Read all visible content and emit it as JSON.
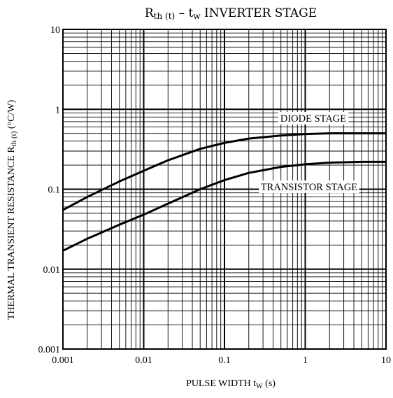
{
  "chart_data": {
    "type": "line",
    "title_parts": [
      "R",
      "th (t)",
      " – t",
      "w",
      " INVERTER STAGE"
    ],
    "ylabel_parts": [
      "THERMAL TRANSIENT RESISTANCE   R",
      "th (t)",
      "   (°C/W)"
    ],
    "xlabel_parts": [
      "PULSE WIDTH   t",
      "W",
      "   (s)"
    ],
    "xscale": "log",
    "yscale": "log",
    "xlim": [
      0.001,
      10
    ],
    "ylim": [
      0.001,
      10
    ],
    "grid": true,
    "x_ticks": [
      "0.001",
      "0.01",
      "0.1",
      "1",
      "10"
    ],
    "y_ticks": [
      "10",
      "1",
      "0.1",
      "0.01",
      "0.001"
    ],
    "series": [
      {
        "name": "DIODE STAGE",
        "x": [
          0.001,
          0.002,
          0.005,
          0.01,
          0.02,
          0.05,
          0.1,
          0.2,
          0.5,
          1,
          2,
          5,
          10
        ],
        "y": [
          0.055,
          0.08,
          0.125,
          0.17,
          0.23,
          0.32,
          0.38,
          0.43,
          0.47,
          0.49,
          0.5,
          0.5,
          0.5
        ]
      },
      {
        "name": "TRANSISTOR STAGE",
        "x": [
          0.001,
          0.002,
          0.005,
          0.01,
          0.02,
          0.05,
          0.1,
          0.2,
          0.5,
          1,
          2,
          5,
          10
        ],
        "y": [
          0.017,
          0.024,
          0.036,
          0.048,
          0.066,
          0.1,
          0.13,
          0.16,
          0.19,
          0.205,
          0.215,
          0.22,
          0.22
        ]
      }
    ]
  }
}
